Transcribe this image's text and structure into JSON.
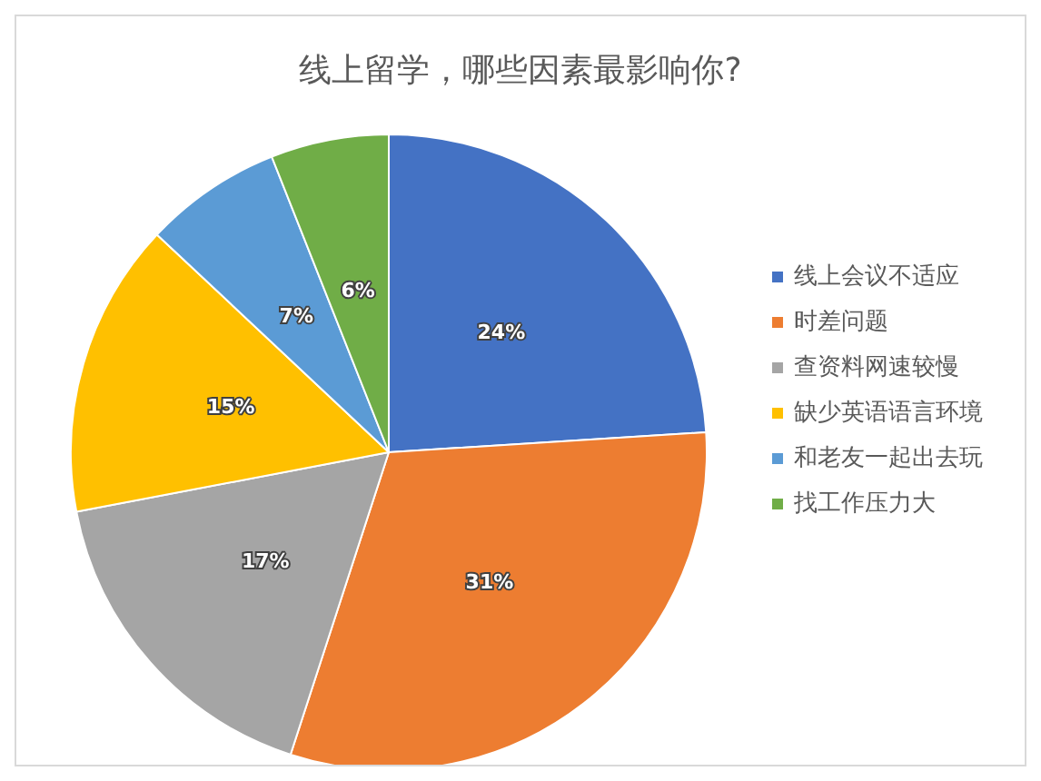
{
  "chart_data": {
    "type": "pie",
    "title": "线上留学，哪些因素最影响你?",
    "categories": [
      "线上会议不适应",
      "时差问题",
      "查资料网速较慢",
      "缺少英语语言环境",
      "和老友一起出去玩",
      "找工作压力大"
    ],
    "values": [
      24,
      31,
      17,
      15,
      7,
      6
    ],
    "colors": [
      "#4472c4",
      "#ed7d31",
      "#a5a5a5",
      "#ffc000",
      "#5b9bd5",
      "#70ad47"
    ],
    "value_labels": [
      "24%",
      "31%",
      "17%",
      "15%",
      "7%",
      "6%"
    ],
    "legend": "right"
  }
}
